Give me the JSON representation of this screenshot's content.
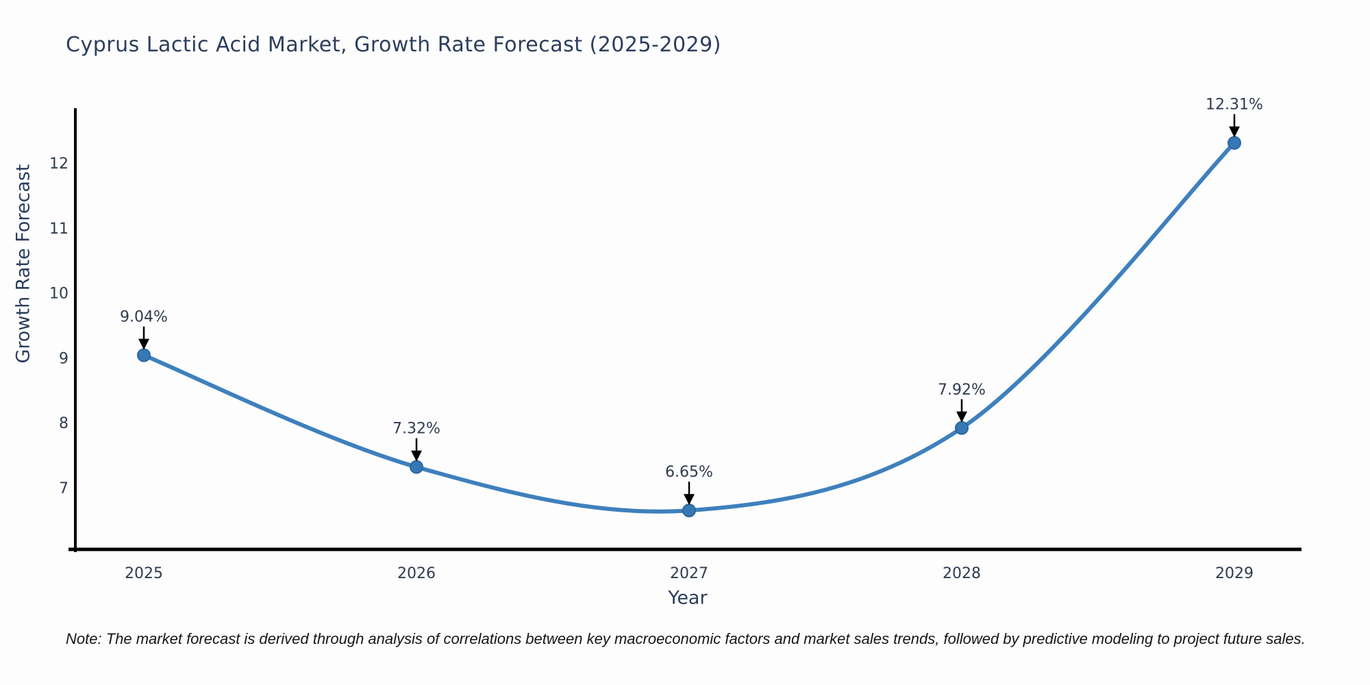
{
  "note": "Note: The market forecast is derived through analysis of correlations between key macroeconomic factors and market sales trends, followed by predictive modeling to project future sales.",
  "chart_data": {
    "type": "line",
    "line_shape": "spline",
    "title": "Cyprus Lactic Acid Market, Growth Rate Forecast (2025-2029)",
    "xlabel": "Year",
    "ylabel": "Growth Rate Forecast",
    "categories": [
      "2025",
      "2026",
      "2027",
      "2028",
      "2029"
    ],
    "values": [
      9.04,
      7.32,
      6.65,
      7.92,
      12.31
    ],
    "point_labels": [
      "9.04%",
      "7.32%",
      "6.65%",
      "7.92%",
      "12.31%"
    ],
    "y_ticks": [
      7,
      8,
      9,
      10,
      11,
      12
    ],
    "ylim": [
      6.05,
      12.9
    ],
    "grid": false,
    "legend": "none",
    "colors": {
      "line": "#3e80bd",
      "marker_fill": "#3578b5",
      "marker_edge": "#2d659e",
      "axis_line": "#000000",
      "tick_text": "#2f3b4f",
      "annotation_text": "#2f3b4f",
      "annotation_arrow": "#000000",
      "title_text": "#2c3e5d",
      "background": "#fdfdfd"
    }
  }
}
